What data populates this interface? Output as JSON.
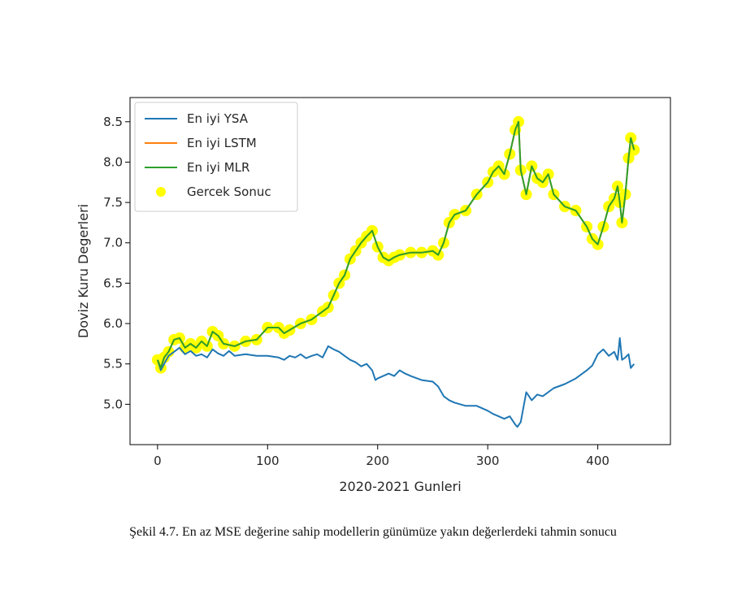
{
  "caption": "Şekil 4.7. En az MSE değerine sahip modellerin günümüze yakın değerlerdeki tahmin sonucu",
  "chart_data": {
    "type": "line",
    "title": "",
    "xlabel": "2020-2021 Gunleri",
    "ylabel": "Doviz Kuru Degerleri",
    "xlim": [
      -25,
      466
    ],
    "ylim": [
      4.5,
      8.8
    ],
    "xticks": [
      0,
      100,
      200,
      300,
      400
    ],
    "yticks": [
      5.0,
      5.5,
      6.0,
      6.5,
      7.0,
      7.5,
      8.0,
      8.5
    ],
    "ytick_labels": [
      "5.0",
      "5.5",
      "6.0",
      "6.5",
      "7.0",
      "7.5",
      "8.0",
      "8.5"
    ],
    "legend_position": "top-left",
    "legend": [
      "En iyi YSA",
      "En iyi LSTM",
      "En iyi MLR",
      "Gercek Sonuc"
    ],
    "colors": {
      "ysa": "#1f77b4",
      "lstm": "#ff7f0e",
      "mlr": "#2ca02c",
      "gercek": "#ffff00"
    },
    "series": [
      {
        "name": "En iyi YSA",
        "style": "line",
        "x": [
          0,
          3,
          6,
          10,
          15,
          20,
          25,
          30,
          35,
          40,
          45,
          50,
          55,
          60,
          65,
          70,
          80,
          90,
          100,
          110,
          115,
          120,
          125,
          130,
          135,
          140,
          145,
          150,
          155,
          160,
          165,
          170,
          175,
          180,
          185,
          190,
          195,
          198,
          200,
          205,
          210,
          215,
          220,
          225,
          230,
          240,
          250,
          255,
          260,
          265,
          270,
          280,
          290,
          300,
          305,
          310,
          315,
          320,
          325,
          327,
          330,
          335,
          340,
          345,
          350,
          360,
          370,
          380,
          390,
          395,
          400,
          405,
          410,
          415,
          418,
          420,
          422,
          425,
          428,
          430,
          433
        ],
        "values": [
          5.55,
          5.42,
          5.5,
          5.6,
          5.65,
          5.7,
          5.62,
          5.66,
          5.6,
          5.62,
          5.58,
          5.68,
          5.63,
          5.6,
          5.66,
          5.6,
          5.62,
          5.6,
          5.6,
          5.58,
          5.55,
          5.6,
          5.58,
          5.62,
          5.57,
          5.6,
          5.62,
          5.58,
          5.72,
          5.68,
          5.65,
          5.6,
          5.55,
          5.52,
          5.47,
          5.5,
          5.42,
          5.3,
          5.32,
          5.35,
          5.38,
          5.35,
          5.42,
          5.38,
          5.35,
          5.3,
          5.28,
          5.22,
          5.1,
          5.05,
          5.02,
          4.98,
          4.98,
          4.92,
          4.88,
          4.85,
          4.82,
          4.85,
          4.75,
          4.72,
          4.78,
          5.15,
          5.05,
          5.12,
          5.1,
          5.2,
          5.25,
          5.32,
          5.42,
          5.48,
          5.62,
          5.68,
          5.6,
          5.65,
          5.55,
          5.82,
          5.55,
          5.58,
          5.62,
          5.45,
          5.5
        ]
      },
      {
        "name": "En iyi LSTM",
        "style": "line",
        "x": [
          0,
          3,
          6,
          10,
          15,
          20,
          25,
          30,
          35,
          40,
          45,
          50,
          55,
          60,
          70,
          80,
          90,
          100,
          110,
          115,
          120,
          130,
          140,
          150,
          155,
          160,
          165,
          170,
          175,
          180,
          185,
          190,
          195,
          200,
          205,
          210,
          215,
          220,
          230,
          240,
          250,
          255,
          260,
          265,
          270,
          280,
          290,
          300,
          305,
          310,
          315,
          320,
          325,
          328,
          330,
          335,
          340,
          345,
          350,
          355,
          360,
          370,
          380,
          390,
          395,
          400,
          405,
          410,
          415,
          418,
          420,
          422,
          425,
          428,
          430,
          433
        ],
        "values": [
          5.55,
          5.45,
          5.58,
          5.65,
          5.8,
          5.82,
          5.7,
          5.75,
          5.7,
          5.78,
          5.72,
          5.9,
          5.85,
          5.75,
          5.72,
          5.78,
          5.8,
          5.95,
          5.95,
          5.88,
          5.92,
          6.0,
          6.05,
          6.15,
          6.2,
          6.35,
          6.5,
          6.6,
          6.8,
          6.9,
          7.0,
          7.08,
          7.15,
          6.95,
          6.82,
          6.78,
          6.82,
          6.85,
          6.88,
          6.88,
          6.9,
          6.85,
          7.0,
          7.25,
          7.35,
          7.4,
          7.6,
          7.75,
          7.88,
          7.95,
          7.85,
          8.1,
          8.4,
          8.5,
          7.9,
          7.6,
          7.95,
          7.8,
          7.75,
          7.85,
          7.6,
          7.45,
          7.4,
          7.2,
          7.05,
          6.98,
          7.2,
          7.45,
          7.55,
          7.7,
          7.5,
          7.25,
          7.6,
          8.05,
          8.3,
          8.15
        ]
      },
      {
        "name": "En iyi MLR",
        "style": "line",
        "x": [
          0,
          3,
          6,
          10,
          15,
          20,
          25,
          30,
          35,
          40,
          45,
          50,
          55,
          60,
          70,
          80,
          90,
          100,
          110,
          115,
          120,
          130,
          140,
          150,
          155,
          160,
          165,
          170,
          175,
          180,
          185,
          190,
          195,
          200,
          205,
          210,
          215,
          220,
          230,
          240,
          250,
          255,
          260,
          265,
          270,
          280,
          290,
          300,
          305,
          310,
          315,
          320,
          325,
          328,
          330,
          335,
          340,
          345,
          350,
          355,
          360,
          370,
          380,
          390,
          395,
          400,
          405,
          410,
          415,
          418,
          420,
          422,
          425,
          428,
          430,
          433
        ],
        "values": [
          5.55,
          5.45,
          5.58,
          5.65,
          5.8,
          5.82,
          5.7,
          5.75,
          5.7,
          5.78,
          5.72,
          5.9,
          5.85,
          5.75,
          5.72,
          5.78,
          5.8,
          5.95,
          5.95,
          5.88,
          5.92,
          6.0,
          6.05,
          6.15,
          6.2,
          6.35,
          6.5,
          6.6,
          6.8,
          6.9,
          7.0,
          7.08,
          7.15,
          6.95,
          6.82,
          6.78,
          6.82,
          6.85,
          6.88,
          6.88,
          6.9,
          6.85,
          7.0,
          7.25,
          7.35,
          7.4,
          7.6,
          7.75,
          7.88,
          7.95,
          7.85,
          8.1,
          8.4,
          8.5,
          7.9,
          7.6,
          7.95,
          7.8,
          7.75,
          7.85,
          7.6,
          7.45,
          7.4,
          7.2,
          7.05,
          6.98,
          7.2,
          7.45,
          7.55,
          7.7,
          7.5,
          7.25,
          7.6,
          8.05,
          8.3,
          8.15
        ]
      },
      {
        "name": "Gercek Sonuc",
        "style": "scatter",
        "x": [
          0,
          3,
          6,
          10,
          15,
          20,
          25,
          30,
          35,
          40,
          45,
          50,
          55,
          60,
          70,
          80,
          90,
          100,
          110,
          115,
          120,
          130,
          140,
          150,
          155,
          160,
          165,
          170,
          175,
          180,
          185,
          190,
          195,
          200,
          205,
          210,
          215,
          220,
          230,
          240,
          250,
          255,
          260,
          265,
          270,
          280,
          290,
          300,
          305,
          310,
          315,
          320,
          325,
          328,
          330,
          335,
          340,
          345,
          350,
          355,
          360,
          370,
          380,
          390,
          395,
          400,
          405,
          410,
          415,
          418,
          420,
          422,
          425,
          428,
          430,
          433
        ],
        "values": [
          5.55,
          5.45,
          5.58,
          5.65,
          5.8,
          5.82,
          5.7,
          5.75,
          5.7,
          5.78,
          5.72,
          5.9,
          5.85,
          5.75,
          5.72,
          5.78,
          5.8,
          5.95,
          5.95,
          5.88,
          5.92,
          6.0,
          6.05,
          6.15,
          6.2,
          6.35,
          6.5,
          6.6,
          6.8,
          6.9,
          7.0,
          7.08,
          7.15,
          6.95,
          6.82,
          6.78,
          6.82,
          6.85,
          6.88,
          6.88,
          6.9,
          6.85,
          7.0,
          7.25,
          7.35,
          7.4,
          7.6,
          7.75,
          7.88,
          7.95,
          7.85,
          8.1,
          8.4,
          8.5,
          7.9,
          7.6,
          7.95,
          7.8,
          7.75,
          7.85,
          7.6,
          7.45,
          7.4,
          7.2,
          7.05,
          6.98,
          7.2,
          7.45,
          7.55,
          7.7,
          7.5,
          7.25,
          7.6,
          8.05,
          8.3,
          8.15
        ]
      }
    ]
  }
}
